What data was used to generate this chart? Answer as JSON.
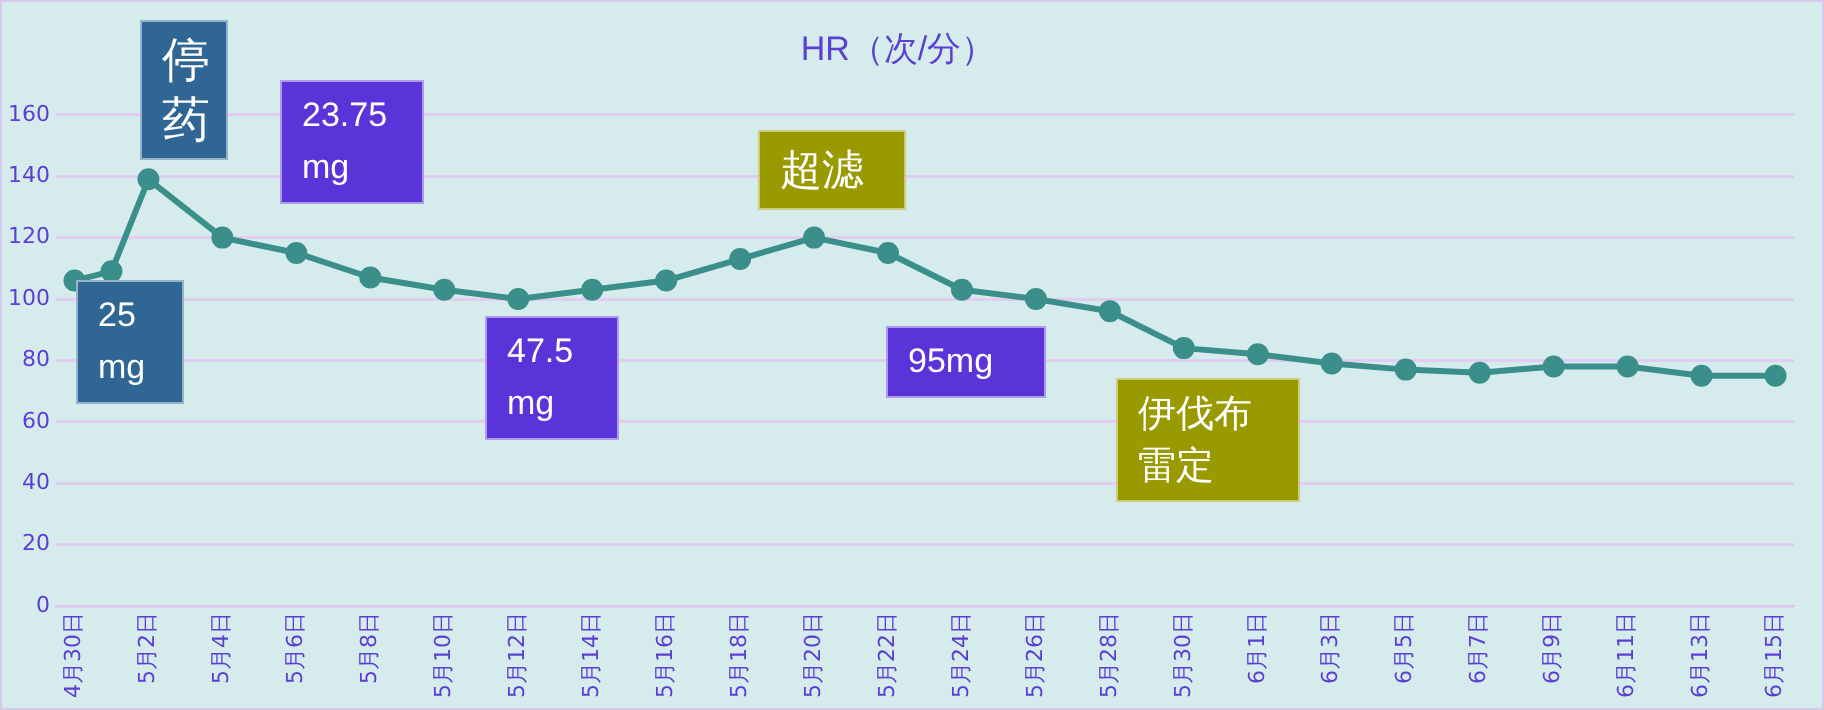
{
  "chart_data": {
    "type": "line",
    "title": "HR（次/分）",
    "x": [
      "--04-30",
      "--05-01",
      "--05-02",
      "--05-04",
      "--05-06",
      "--05-08",
      "--05-10",
      "--05-12",
      "--05-14",
      "--05-16",
      "--05-18",
      "--05-20",
      "--05-22",
      "--05-24",
      "--05-26",
      "--05-28",
      "--05-30",
      "--06-01",
      "--06-03",
      "--06-05",
      "--06-07",
      "--06-09",
      "--06-11",
      "--06-13",
      "--06-15"
    ],
    "series": [
      {
        "color": "#3a8f8a",
        "values": [
          106,
          109,
          139,
          120,
          115,
          107,
          103,
          100,
          103,
          106,
          113,
          120,
          115,
          103,
          100,
          96,
          84,
          82,
          79,
          77,
          76,
          78,
          78,
          75,
          75
        ]
      }
    ],
    "xlim": [
      "--04-29T12:00",
      "--06-15T12:00"
    ],
    "xticks": [
      {
        "value": "--04-30",
        "label": "4月30日"
      },
      {
        "value": "--05-02",
        "label": "5月2日"
      },
      {
        "value": "--05-04",
        "label": "5月4日"
      },
      {
        "value": "--05-06",
        "label": "5月6日"
      },
      {
        "value": "--05-08",
        "label": "5月8日"
      },
      {
        "value": "--05-10",
        "label": "5月10日"
      },
      {
        "value": "--05-12",
        "label": "5月12日"
      },
      {
        "value": "--05-14",
        "label": "5月14日"
      },
      {
        "value": "--05-16",
        "label": "5月16日"
      },
      {
        "value": "--05-18",
        "label": "5月18日"
      },
      {
        "value": "--05-20",
        "label": "5月20日"
      },
      {
        "value": "--05-22",
        "label": "5月22日"
      },
      {
        "value": "--05-24",
        "label": "5月24日"
      },
      {
        "value": "--05-26",
        "label": "5月26日"
      },
      {
        "value": "--05-28",
        "label": "5月28日"
      },
      {
        "value": "--05-30",
        "label": "5月30日"
      },
      {
        "value": "--06-01",
        "label": "6月1日"
      },
      {
        "value": "--06-03",
        "label": "6月3日"
      },
      {
        "value": "--06-05",
        "label": "6月5日"
      },
      {
        "value": "--06-07",
        "label": "6月7日"
      },
      {
        "value": "--06-09",
        "label": "6月9日"
      },
      {
        "value": "--06-11",
        "label": "6月11日"
      },
      {
        "value": "--06-13",
        "label": "6月13日"
      },
      {
        "value": "--06-15",
        "label": "6月15日"
      }
    ],
    "ylim": [
      0,
      160
    ],
    "yticks": [
      0,
      20,
      40,
      60,
      80,
      100,
      120,
      140,
      160
    ],
    "grid": "y",
    "marker": "circle",
    "line_style": "solid",
    "legend": false,
    "annotations": [
      "停药",
      "25 mg",
      "23.75 mg",
      "47.5 mg",
      "超滤",
      "95mg",
      "伊伐布雷定"
    ]
  }
}
